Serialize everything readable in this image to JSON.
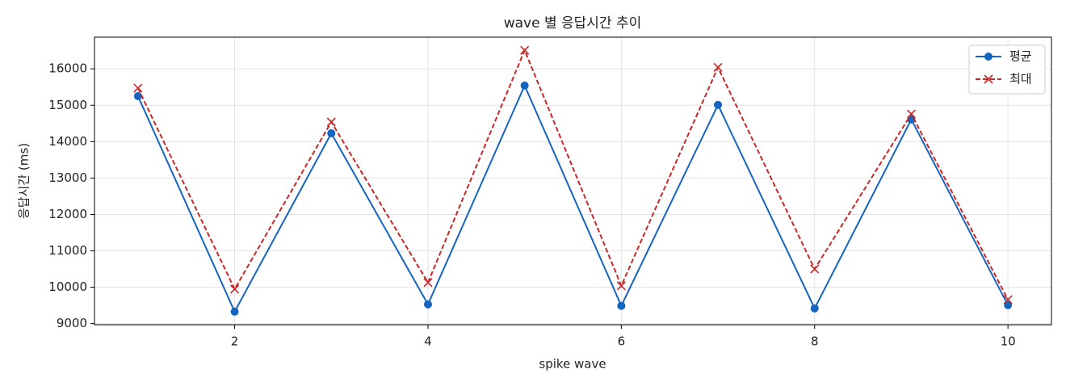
{
  "chart_data": {
    "type": "line",
    "title": "wave 별 응답시간 추이",
    "x_label": "spike wave",
    "y_label": "응답시간 (ms)",
    "x": [
      1,
      2,
      3,
      4,
      5,
      6,
      7,
      8,
      9,
      10
    ],
    "series": [
      {
        "name": "평균",
        "color": "#1565c0",
        "marker": "o",
        "linestyle": "solid",
        "values": [
          15250,
          9330,
          14230,
          9530,
          15540,
          9490,
          15010,
          9420,
          14610,
          9510
        ]
      },
      {
        "name": "최대",
        "color": "#c62828",
        "marker": "x",
        "linestyle": "dashed",
        "values": [
          15470,
          9950,
          14540,
          10130,
          16510,
          10040,
          16040,
          10500,
          14760,
          9660
        ]
      }
    ],
    "xlim": [
      0.55,
      10.45
    ],
    "ylim": [
      8970,
      16870
    ],
    "xticks": [
      2,
      4,
      6,
      8,
      10
    ],
    "yticks": [
      9000,
      10000,
      11000,
      12000,
      13000,
      14000,
      15000,
      16000
    ],
    "grid": true,
    "legend": "upper right"
  }
}
